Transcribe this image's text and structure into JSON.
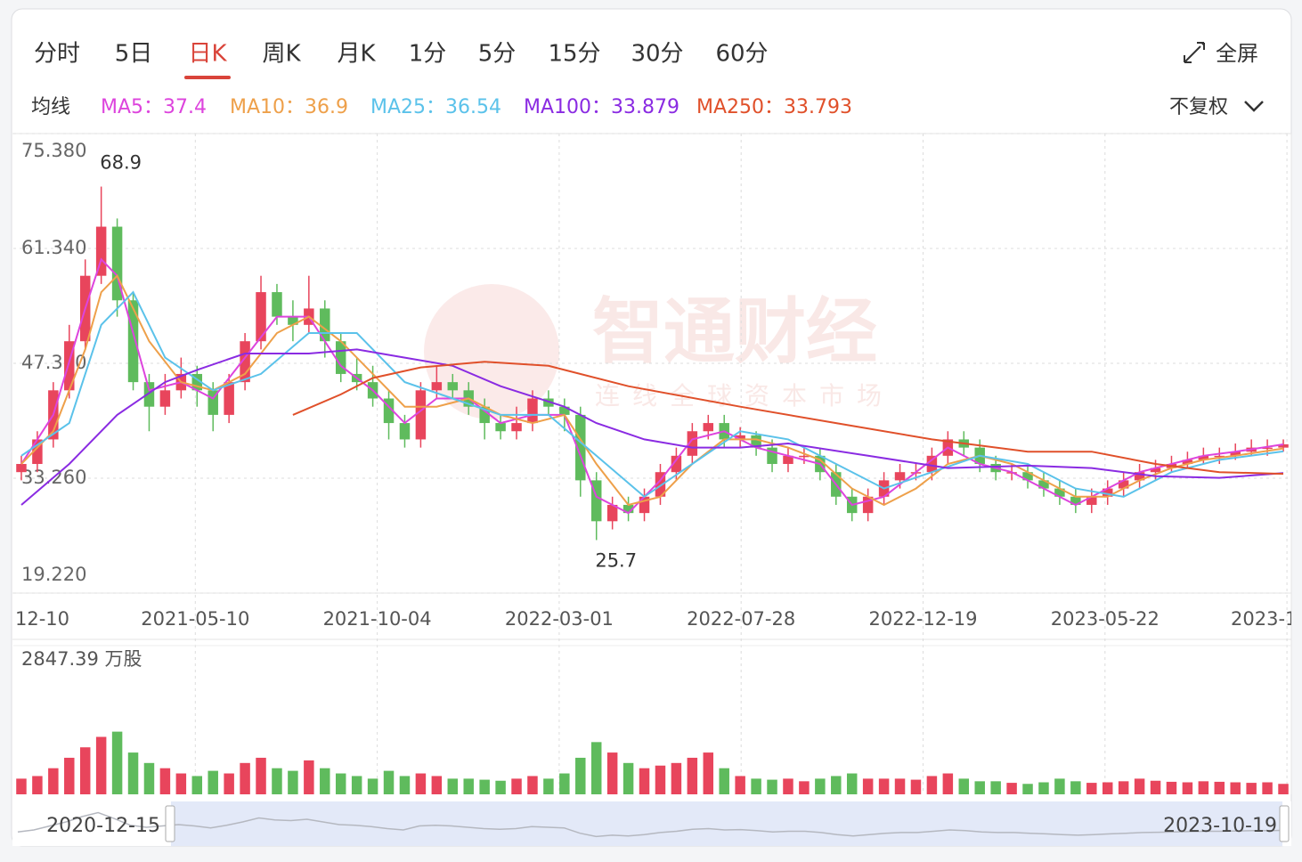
{
  "toolbar": {
    "tabs": [
      "分时",
      "5日",
      "日K",
      "周K",
      "月K",
      "1分",
      "5分",
      "15分",
      "30分",
      "60分"
    ],
    "active_tab": 2,
    "fullscreen": "全屏",
    "ma_label": "均线",
    "adjust": "不复权"
  },
  "chart_data": {
    "type": "candlestick",
    "watermark": {
      "title": "智通财经",
      "subtitle": "连线全球资本市场"
    },
    "ylim": [
      19.22,
      75.38
    ],
    "yticks": [
      {
        "value": 19.22,
        "label": "19.220"
      },
      {
        "value": 33.26,
        "label": "33.260"
      },
      {
        "value": 47.3,
        "label": "47.300"
      },
      {
        "value": 61.34,
        "label": "61.340"
      },
      {
        "value": 75.38,
        "label": "75.380"
      }
    ],
    "x_labels": [
      "12-10",
      "2021-05-10",
      "2021-10-04",
      "2022-03-01",
      "2022-07-28",
      "2022-12-19",
      "2023-05-22",
      "2023-1"
    ],
    "grid": true,
    "up_color": "#e8455c",
    "down_color": "#5fbb5d",
    "candles": {
      "open": [
        34,
        35,
        38,
        44,
        50,
        58,
        64,
        55,
        45,
        42,
        44,
        46,
        44,
        41,
        45,
        50,
        56,
        53,
        52,
        54,
        50,
        46,
        45,
        43,
        40,
        38,
        44,
        45,
        44,
        42,
        40,
        39,
        40,
        43,
        42,
        41,
        33,
        28,
        30,
        29,
        31,
        34,
        36,
        39,
        40,
        38,
        38.5,
        37,
        35,
        36,
        36,
        34,
        31,
        29,
        31,
        33,
        34,
        34,
        36,
        38,
        37,
        35,
        34,
        34,
        33,
        32,
        31,
        30,
        31,
        32,
        33,
        34,
        34.5,
        35,
        35.5,
        36,
        36,
        36.5,
        37,
        37
      ],
      "high": [
        36,
        39,
        45,
        52,
        60,
        68.9,
        65,
        56,
        46,
        46,
        48,
        47,
        45,
        46,
        51,
        58,
        57,
        55,
        58,
        55,
        51,
        48,
        47,
        44,
        41,
        45,
        47,
        46,
        45,
        43,
        41,
        42,
        44,
        44,
        43,
        42,
        34,
        31,
        31,
        32,
        35,
        37,
        40,
        41,
        41,
        39.5,
        39,
        38,
        37,
        37,
        37,
        35,
        32,
        32,
        34,
        35,
        35,
        37,
        39,
        39,
        38,
        36,
        35,
        35,
        34,
        33,
        32,
        32,
        33,
        34,
        35,
        35.5,
        36,
        36.5,
        37,
        37,
        37.5,
        38,
        38,
        38
      ],
      "low": [
        33,
        34,
        37,
        43,
        49,
        57,
        53,
        44,
        39,
        41,
        43,
        42,
        39,
        40,
        44,
        49,
        52,
        50,
        51,
        48,
        45,
        44,
        42,
        38,
        37,
        37,
        43,
        43,
        41,
        38,
        38,
        38,
        39,
        41,
        39,
        31,
        25.7,
        27,
        28,
        28,
        30,
        33,
        35,
        38,
        37,
        37,
        36,
        34,
        34,
        35,
        33,
        30,
        28,
        28,
        30,
        32,
        33,
        33,
        35,
        36,
        34,
        33,
        33,
        32,
        31,
        30,
        29,
        29,
        30,
        31,
        32,
        33,
        34,
        34.5,
        35,
        35,
        35.5,
        36,
        36,
        36.5
      ],
      "close": [
        35,
        38,
        44,
        50,
        58,
        64,
        55,
        45,
        42,
        44,
        46,
        44,
        41,
        45,
        50,
        56,
        53,
        52,
        54,
        50,
        46,
        45,
        43,
        40,
        38,
        44,
        45,
        44,
        42,
        40,
        39,
        40,
        43,
        42,
        41,
        33,
        28,
        30,
        29,
        31,
        34,
        36,
        39,
        40,
        38,
        38.5,
        37,
        35,
        36,
        36,
        34,
        31,
        29,
        31,
        33,
        34,
        34,
        36,
        38,
        37,
        35,
        34,
        34,
        33,
        32,
        31,
        30,
        31,
        32,
        33,
        34,
        34.5,
        35,
        35.5,
        36,
        36,
        36.5,
        37,
        37,
        37.4
      ]
    },
    "series": [
      {
        "name": "MA5：",
        "latest": 37.4,
        "color": "#dd44dd",
        "x": [
          0,
          2,
          4,
          5,
          6,
          8,
          10,
          12,
          14,
          16,
          18,
          20,
          22,
          24,
          26,
          28,
          30,
          32,
          34,
          36,
          38,
          40,
          42,
          44,
          46,
          48,
          50,
          52,
          54,
          56,
          58,
          60,
          62,
          64,
          66,
          68,
          70,
          72,
          74,
          76,
          79
        ],
        "values": [
          35,
          41,
          54,
          60,
          58,
          44,
          45,
          43,
          48,
          53,
          53,
          47,
          44,
          40,
          43,
          43,
          40,
          41,
          41,
          31,
          29,
          33,
          38,
          39,
          37,
          36,
          35,
          30,
          31,
          34,
          37,
          35,
          34,
          32,
          30,
          32,
          34,
          35,
          36,
          36.5,
          37.4
        ]
      },
      {
        "name": "MA10：",
        "latest": 36.9,
        "color": "#eea04a",
        "x": [
          0,
          2,
          4,
          5,
          6,
          8,
          10,
          12,
          14,
          16,
          18,
          20,
          22,
          24,
          26,
          28,
          30,
          32,
          34,
          36,
          38,
          40,
          42,
          44,
          46,
          48,
          50,
          52,
          54,
          56,
          58,
          60,
          62,
          64,
          66,
          68,
          70,
          72,
          74,
          76,
          79
        ],
        "values": [
          35,
          39,
          49,
          56,
          58,
          50,
          45,
          44,
          46,
          51,
          53,
          50,
          46,
          42,
          42,
          43,
          41,
          40,
          41,
          35,
          30,
          31,
          35,
          38,
          38,
          37,
          35.5,
          32,
          30,
          32,
          35,
          36,
          35,
          33,
          31,
          31,
          33,
          34.5,
          35.5,
          36,
          36.9
        ]
      },
      {
        "name": "MA25：",
        "latest": 36.54,
        "color": "#5bc2ea",
        "x": [
          0,
          3,
          5,
          7,
          9,
          12,
          15,
          18,
          21,
          24,
          27,
          30,
          33,
          36,
          39,
          42,
          45,
          48,
          51,
          54,
          57,
          60,
          63,
          66,
          69,
          72,
          75,
          79
        ],
        "values": [
          36,
          40,
          52,
          56,
          48,
          44,
          46,
          51,
          51,
          45,
          43,
          41,
          41,
          36,
          31,
          35,
          39,
          38,
          35,
          32,
          34,
          36,
          35,
          32,
          31,
          34,
          35.5,
          36.54
        ]
      },
      {
        "name": "MA100：",
        "latest": 33.879,
        "color": "#8a2be2",
        "x": [
          0,
          3,
          6,
          9,
          11,
          14,
          18,
          21,
          24,
          27,
          30,
          34,
          36,
          39,
          42,
          45,
          48,
          53,
          58,
          63,
          67,
          71,
          75,
          79
        ],
        "values": [
          30,
          35,
          41,
          45,
          46.5,
          48.5,
          48.5,
          49,
          48,
          47,
          44.5,
          42,
          40,
          38,
          37,
          37,
          37.5,
          36,
          34.5,
          34.8,
          34.5,
          33.5,
          33.3,
          33.879
        ]
      },
      {
        "name": "MA250：",
        "latest": 33.793,
        "color": "#e0502a",
        "x": [
          17,
          20,
          22,
          25,
          29,
          33,
          38,
          45,
          51,
          57,
          63,
          67,
          71,
          75,
          79
        ],
        "values": [
          41,
          43.5,
          45.5,
          46.8,
          47.5,
          47,
          44.5,
          42,
          40,
          38,
          36.5,
          36.5,
          35,
          34,
          33.793
        ]
      }
    ],
    "volume": {
      "ylim": [
        0,
        2847.39
      ],
      "yticks": [
        {
          "value": 2847.39,
          "label": "2847.39 万股"
        }
      ],
      "values": [
        300,
        350,
        500,
        700,
        900,
        1100,
        1200,
        800,
        600,
        500,
        400,
        350,
        450,
        400,
        600,
        700,
        500,
        450,
        650,
        500,
        400,
        350,
        300,
        450,
        350,
        400,
        350,
        300,
        300,
        280,
        260,
        300,
        350,
        300,
        400,
        700,
        1000,
        800,
        600,
        500,
        550,
        600,
        700,
        800,
        500,
        350,
        300,
        280,
        300,
        250,
        300,
        350,
        400,
        300,
        300,
        300,
        280,
        350,
        400,
        300,
        250,
        250,
        220,
        200,
        230,
        300,
        250,
        220,
        230,
        250,
        300,
        260,
        240,
        230,
        250,
        240,
        230,
        220,
        230,
        200
      ]
    },
    "navigator": {
      "start": "2020-12-15",
      "end": "2023-10-19"
    }
  }
}
